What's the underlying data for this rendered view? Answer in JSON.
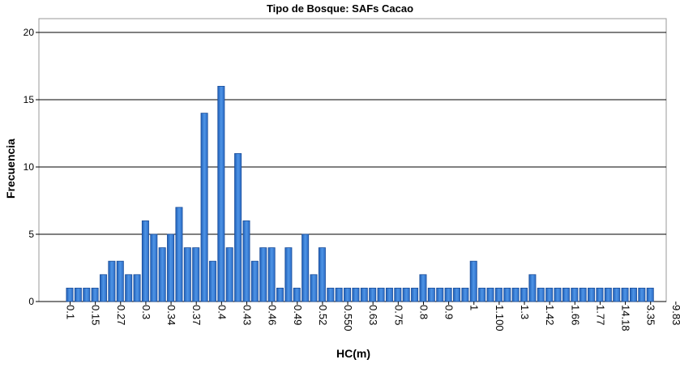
{
  "chart_data": {
    "type": "bar",
    "title": "Tipo de Bosque: SAFs Cacao",
    "xlabel": "HC(m)",
    "ylabel": "Frecuencia",
    "ylim": [
      0,
      20
    ],
    "y_ticks": [
      0,
      5,
      10,
      15,
      20
    ],
    "grid": "horizontal",
    "bar_color": "#3c7fd6",
    "x_tick_labels": [
      "0.1",
      "0.15",
      "0.27",
      "0.3",
      "0.34",
      "0.37",
      "0.4",
      "0.43",
      "0.46",
      "0.49",
      "0.52",
      "0.550",
      "0.63",
      "0.75",
      "0.8",
      "0.9",
      "1",
      "1.100",
      "1.3",
      "1.42",
      "1.66",
      "1.77",
      "14.18",
      "3.35",
      "9.83"
    ],
    "values": [
      1,
      1,
      1,
      1,
      2,
      3,
      3,
      2,
      2,
      6,
      5,
      4,
      5,
      7,
      4,
      4,
      14,
      3,
      16,
      4,
      11,
      6,
      3,
      4,
      4,
      1,
      4,
      1,
      5,
      2,
      4,
      1,
      1,
      1,
      1,
      1,
      1,
      1,
      1,
      1,
      1,
      1,
      2,
      1,
      1,
      1,
      1,
      1,
      3,
      1,
      1,
      1,
      1,
      1,
      1,
      2,
      1,
      1,
      1,
      1,
      1,
      1,
      1,
      1,
      1,
      1,
      1,
      1,
      1,
      1
    ]
  }
}
